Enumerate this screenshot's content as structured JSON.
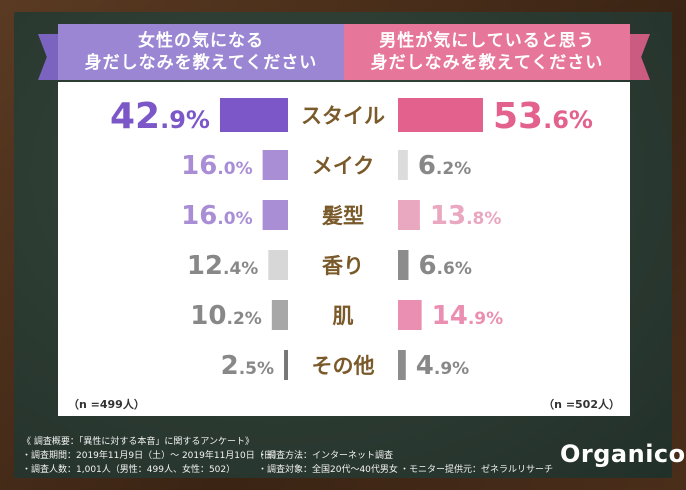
{
  "chart_data": {
    "type": "bar",
    "categories": [
      "スタイル",
      "メイク",
      "髪型",
      "香り",
      "肌",
      "その他"
    ],
    "series": [
      {
        "name": "女性の気になる身だしなみを教えてください",
        "values": [
          42.9,
          16.0,
          16.0,
          12.4,
          10.2,
          2.5
        ],
        "n_label": "（n =499人）"
      },
      {
        "name": "男性が気にしていると思う身だしなみを教えてください",
        "values": [
          53.6,
          6.2,
          13.8,
          6.6,
          14.9,
          4.9
        ],
        "n_label": "（n =502人）"
      }
    ],
    "unit": "%",
    "bar_colors": {
      "left": [
        "#7b57c8",
        "#a98ed6",
        "#a98ed6",
        "#d7d7d7",
        "#a7a7a7",
        "#777777"
      ],
      "right": [
        "#e3628d",
        "#dcdcdc",
        "#e9a7c0",
        "#8c8c8c",
        "#ea8fb1",
        "#8c8c8c"
      ]
    },
    "label_colors": {
      "left": [
        "#7b57c8",
        "#a98ed6",
        "#a98ed6",
        "#888888",
        "#888888",
        "#888888"
      ],
      "right": [
        "#e3628d",
        "#888888",
        "#e9a7c0",
        "#888888",
        "#ea8fb1",
        "#888888"
      ]
    },
    "category_color": "#7a5a2a"
  },
  "header": {
    "left_line1": "女性の気になる",
    "left_line2": "身だしなみを教えてください",
    "right_line1": "男性が気にしていると思う",
    "right_line2": "身だしなみを教えてください",
    "left_color": "#9a86d2",
    "right_color": "#e6779b"
  },
  "footer": {
    "line1": "《 調査概要：「異性に対する本音」に関するアンケート》",
    "line2": "・調査期間：2019年11月9日（土）～ 2019年11月10日（日）",
    "line2b": "・調査方法：インターネット調査",
    "line3": "・調査人数：1,001人（男性：499人、女性：502）",
    "line3b": "・調査対象：全国20代～40代男女",
    "line3c": "・モニター提供元：ゼネラルリサーチ"
  },
  "logo": "Organico"
}
